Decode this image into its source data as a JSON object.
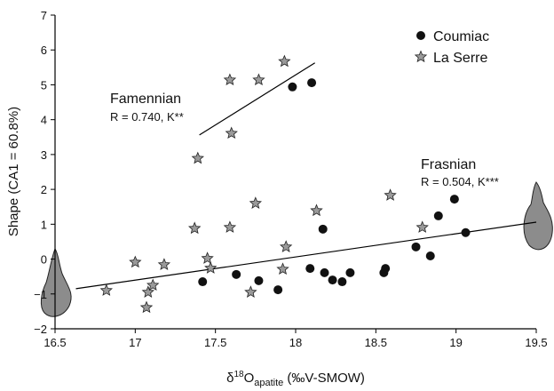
{
  "chart_data": {
    "type": "scatter",
    "ylabel": "Shape (CA1 = 60.8%)",
    "xlabel_parts": [
      "δ",
      "18",
      "O",
      "apatite",
      " (‰V-SMOW)"
    ],
    "xlim": [
      16.5,
      19.5
    ],
    "xticks": [
      16.5,
      17,
      17.5,
      18,
      18.5,
      19,
      19.5
    ],
    "ylim": [
      -2,
      7
    ],
    "yticks": [
      {
        "value": -2,
        "label": "−2"
      },
      {
        "value": -1,
        "label": "−1"
      },
      0,
      1,
      2,
      3,
      4,
      5,
      6,
      7
    ],
    "legend": "top-right",
    "series": [
      {
        "name": "Coumiac",
        "marker": "circle",
        "color": "#111111",
        "x": [
          17.98,
          18.1,
          17.42,
          17.63,
          17.77,
          17.89,
          18.09,
          18.17,
          18.18,
          18.23,
          18.29,
          18.34,
          18.55,
          18.56,
          18.75,
          18.84,
          18.89,
          18.99,
          19.06
        ],
        "values": [
          4.94,
          5.06,
          -0.65,
          -0.44,
          -0.62,
          -0.88,
          -0.27,
          0.86,
          -0.39,
          -0.6,
          -0.65,
          -0.39,
          -0.39,
          -0.27,
          0.35,
          0.09,
          1.24,
          1.72,
          0.76
        ]
      },
      {
        "name": "La Serre",
        "marker": "star",
        "color": "#9a9a9a",
        "x": [
          16.82,
          17.0,
          17.08,
          17.07,
          17.11,
          17.18,
          17.37,
          17.39,
          17.45,
          17.47,
          17.59,
          17.59,
          17.6,
          17.77,
          17.75,
          17.72,
          17.92,
          17.93,
          17.94,
          18.13,
          18.59,
          18.79
        ],
        "values": [
          -0.9,
          -0.09,
          -0.95,
          -1.39,
          -0.75,
          -0.16,
          0.88,
          2.89,
          0.02,
          -0.26,
          0.91,
          5.14,
          3.61,
          5.14,
          1.6,
          -0.95,
          -0.29,
          5.67,
          0.35,
          1.39,
          1.83,
          0.91
        ]
      }
    ],
    "fits": [
      {
        "name": "Famennian",
        "stat": "R = 0.740, K**",
        "x": [
          17.4,
          18.12
        ],
        "values": [
          3.56,
          5.63
        ]
      },
      {
        "name": "Frasnian",
        "stat": "R = 0.504, K***",
        "x": [
          16.63,
          19.5
        ],
        "values": [
          -0.85,
          1.06
        ]
      }
    ]
  }
}
